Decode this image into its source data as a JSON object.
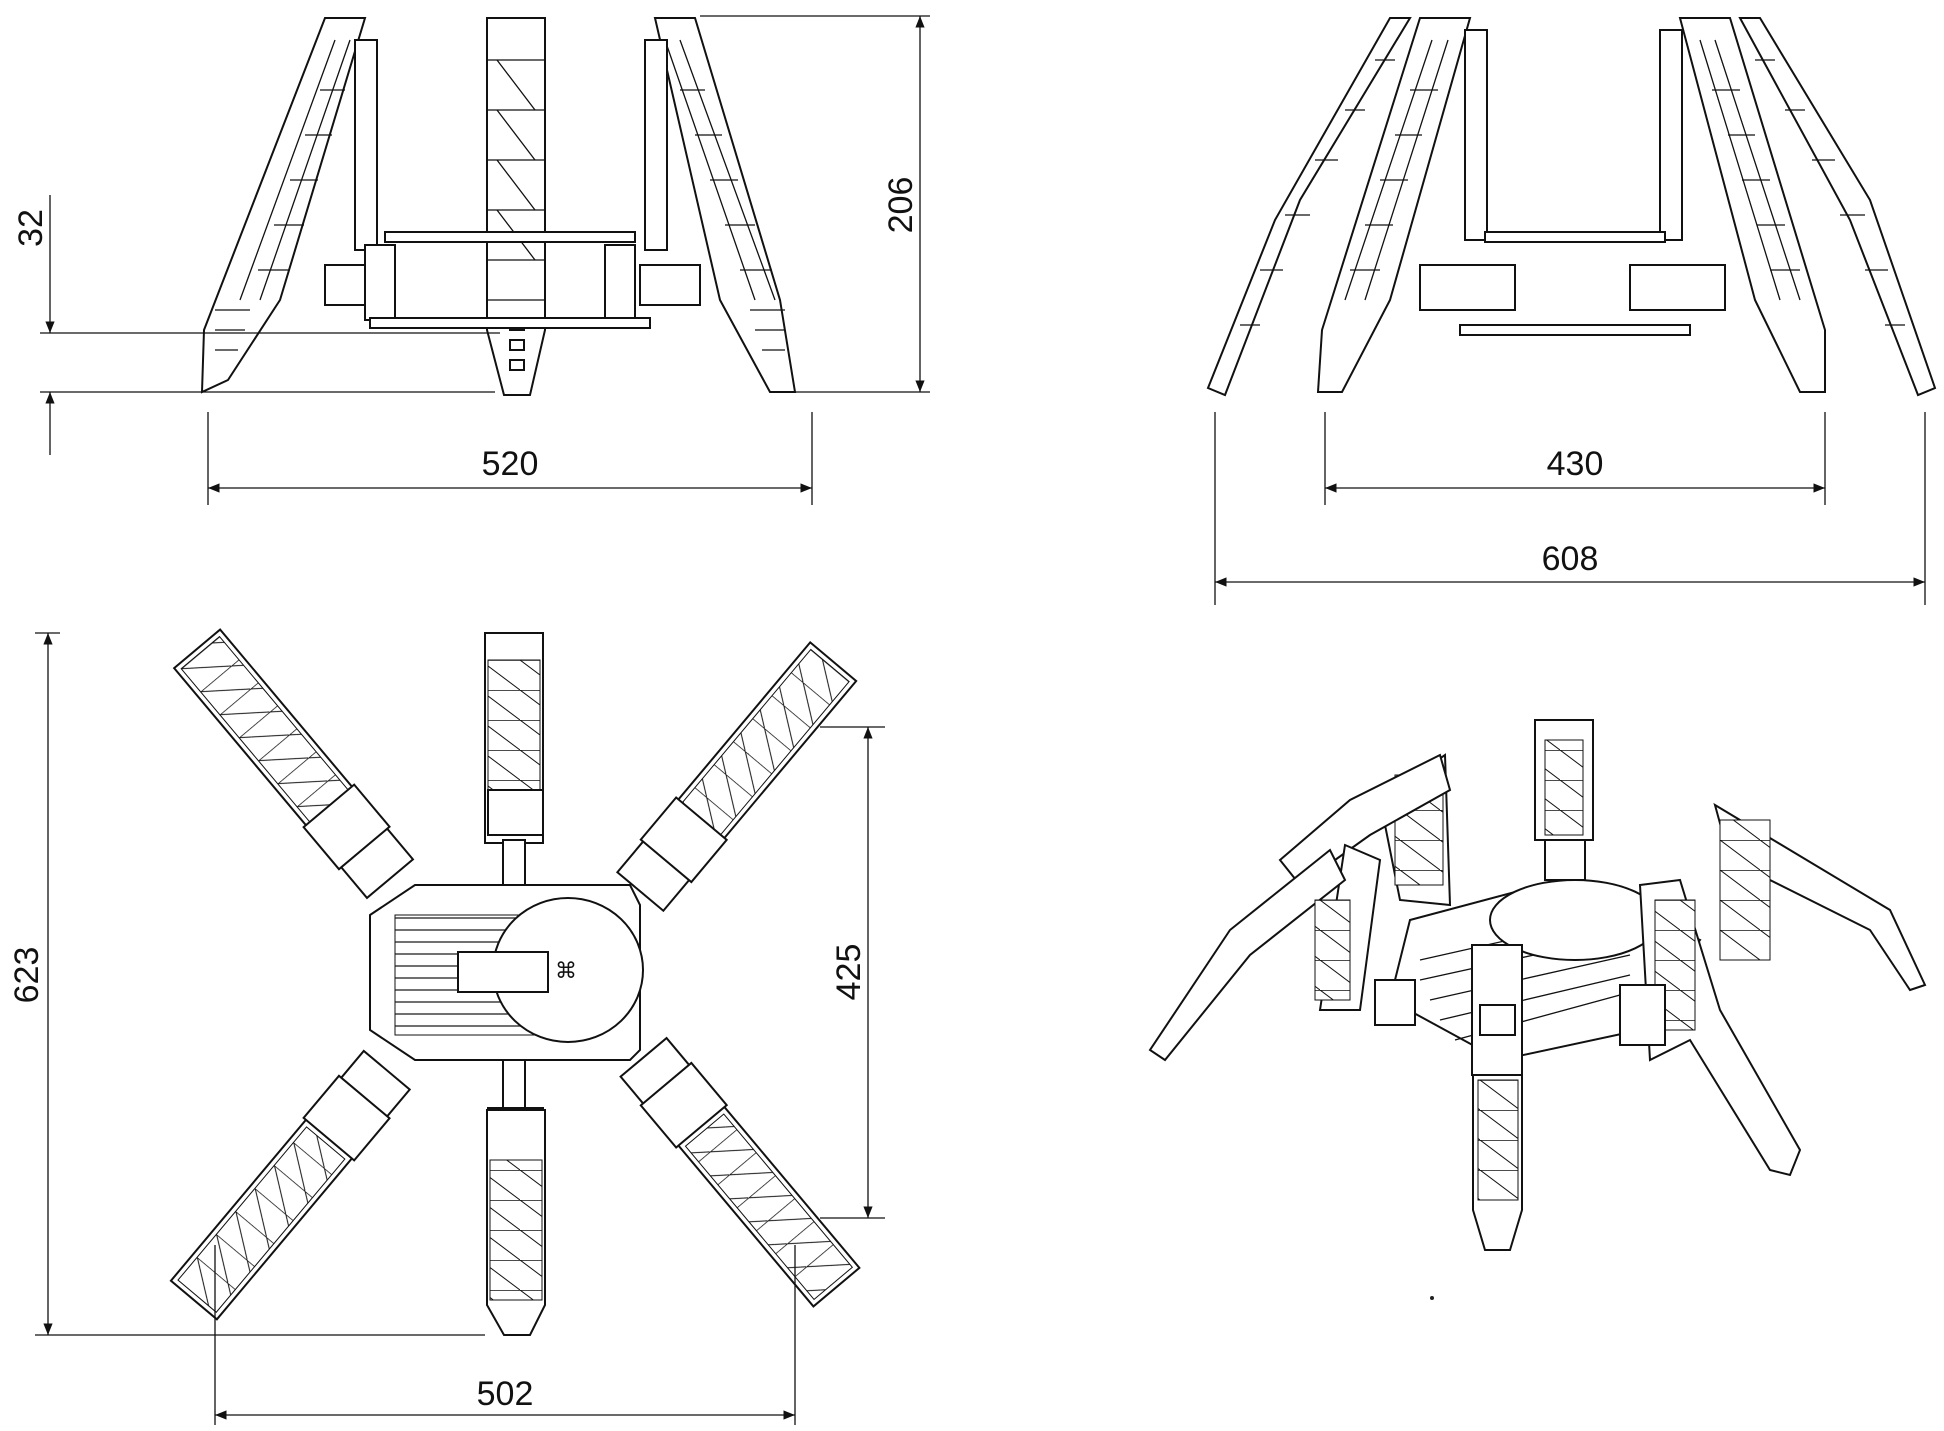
{
  "views": {
    "front": {
      "dims": {
        "width": "520",
        "height": "206",
        "clearance": "32"
      }
    },
    "side": {
      "dims": {
        "inner_span": "430",
        "outer_span": "608"
      }
    },
    "top": {
      "dims": {
        "length": "623",
        "width": "502",
        "leg_span": "425"
      }
    },
    "iso": {}
  }
}
